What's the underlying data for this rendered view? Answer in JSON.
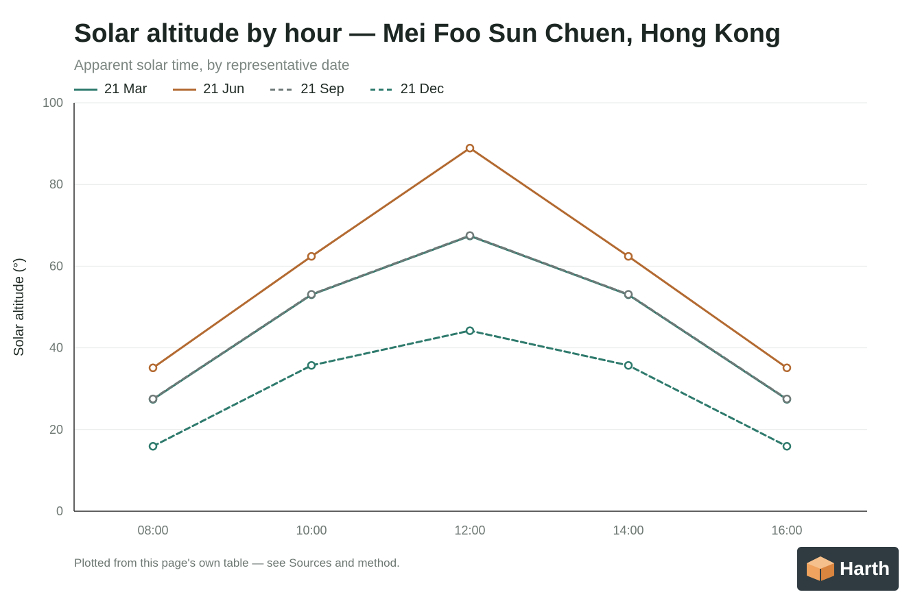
{
  "chart_data": {
    "type": "line",
    "title": "Solar altitude by hour — Mei Foo Sun Chuen, Hong Kong",
    "subtitle": "Apparent solar time, by representative date",
    "xlabel": "",
    "ylabel": "Solar altitude (°)",
    "categories": [
      "08:00",
      "10:00",
      "12:00",
      "14:00",
      "16:00"
    ],
    "ylim": [
      0,
      100
    ],
    "yticks": [
      0,
      20,
      40,
      60,
      80,
      100
    ],
    "grid": true,
    "legend_position": "top-left",
    "series": [
      {
        "name": "21 Mar",
        "values": [
          27.4,
          53.0,
          67.4,
          53.0,
          27.4
        ],
        "color": "#2e7a6c",
        "dash": "solid"
      },
      {
        "name": "21 Jun",
        "values": [
          35.1,
          62.4,
          88.9,
          62.4,
          35.1
        ],
        "color": "#b36a31",
        "dash": "solid"
      },
      {
        "name": "21 Sep",
        "values": [
          27.5,
          53.1,
          67.5,
          53.1,
          27.5
        ],
        "color": "#6f7a78",
        "dash": "dashed"
      },
      {
        "name": "21 Dec",
        "values": [
          15.9,
          35.7,
          44.2,
          35.7,
          15.9
        ],
        "color": "#2e7a6c",
        "dash": "dashed"
      }
    ],
    "footnote": "Plotted from this page's own table — see Sources and method."
  },
  "brand": {
    "name": "Harth",
    "icon": "cube-icon",
    "bg_color": "#2f3b40",
    "icon_color": "#f0a35e"
  }
}
